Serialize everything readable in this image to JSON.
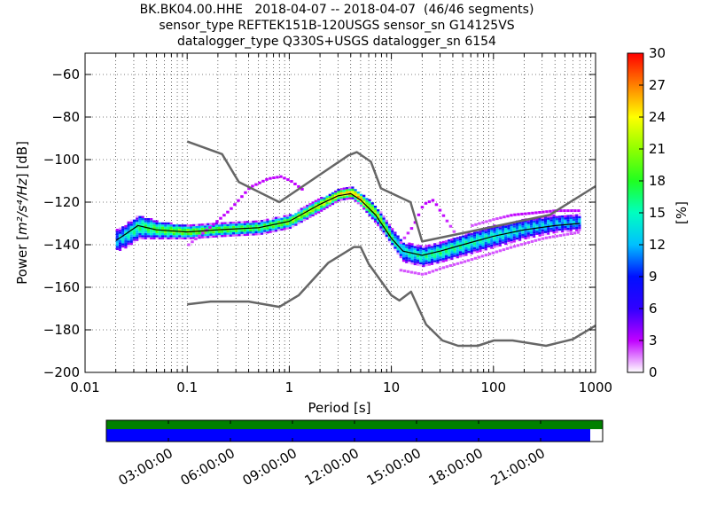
{
  "title": {
    "line1": "BK.BK04.00.HHE   2018-04-07 -- 2018-04-07  (46/46 segments)",
    "line2": "sensor_type REFTEK151B-120USGS sensor_sn G14125VS",
    "line3": "datalogger_type Q330S+USGS datalogger_sn 6154"
  },
  "chart_data": [
    {
      "type": "heatmap",
      "xlabel": "Period [s]",
      "ylabel_prefix": "Power [",
      "ylabel_units": "m²/s⁴/Hz",
      "ylabel_suffix": "] [dB]",
      "xscale": "log",
      "xlim": [
        0.01,
        1000
      ],
      "ylim": [
        -200,
        -50
      ],
      "xticks": [
        0.01,
        0.1,
        1,
        10,
        100,
        1000
      ],
      "xtick_labels": [
        "0.01",
        "0.1",
        "1",
        "10",
        "100",
        "1000"
      ],
      "yticks": [
        -200,
        -180,
        -160,
        -140,
        -120,
        -100,
        -80,
        -60
      ],
      "grid": true,
      "colorbar": {
        "label": "[%]",
        "range": [
          0,
          30
        ],
        "ticks": [
          0,
          3,
          6,
          9,
          12,
          15,
          18,
          21,
          24,
          27,
          30
        ],
        "colormap": "pqlx"
      },
      "noise_model_high": {
        "color": "#666666",
        "period": [
          0.1,
          0.22,
          0.32,
          0.8,
          3.8,
          4.6,
          6.3,
          7.9,
          15.4,
          20,
          354.8,
          1000
        ],
        "power": [
          -91.5,
          -97.4,
          -110.5,
          -120.0,
          -98.0,
          -96.5,
          -101.0,
          -113.5,
          -120.0,
          -138.5,
          -126.0,
          -112.5
        ]
      },
      "noise_model_low": {
        "color": "#666666",
        "period": [
          0.1,
          0.17,
          0.4,
          0.8,
          1.24,
          2.4,
          4.3,
          5.0,
          6.0,
          10.0,
          12.0,
          15.6,
          21.9,
          31.6,
          45,
          70,
          101,
          154,
          328,
          600,
          1000
        ],
        "power": [
          -168.0,
          -166.7,
          -166.7,
          -169.2,
          -163.7,
          -148.6,
          -141.1,
          -141.1,
          -149.0,
          -163.8,
          -166.2,
          -162.1,
          -177.5,
          -185.0,
          -187.5,
          -187.5,
          -185.0,
          -185.0,
          -187.5,
          -184.4,
          -178.0
        ]
      },
      "median_curve": {
        "color": "#000000",
        "period": [
          0.02,
          0.025,
          0.033,
          0.05,
          0.1,
          0.2,
          0.5,
          1,
          2,
          3,
          4,
          5,
          7,
          10,
          13,
          20,
          30,
          50,
          100,
          200,
          400,
          700
        ],
        "power": [
          -138,
          -135,
          -131,
          -133,
          -134,
          -133,
          -132,
          -129,
          -121,
          -117,
          -116,
          -119,
          -126,
          -137,
          -143,
          -145,
          -143,
          -140,
          -136,
          -133,
          -131,
          -130
        ]
      },
      "distribution": {
        "period": [
          0.02,
          0.025,
          0.033,
          0.05,
          0.1,
          0.2,
          0.5,
          1,
          2,
          3,
          4,
          5,
          7,
          10,
          13,
          20,
          30,
          50,
          100,
          200,
          400,
          700
        ],
        "p_low": [
          -143,
          -141,
          -137,
          -137,
          -137,
          -136,
          -135,
          -132,
          -124,
          -119,
          -118,
          -122,
          -130,
          -141,
          -148,
          -150,
          -148,
          -145,
          -141,
          -137,
          -134,
          -133
        ],
        "p_high": [
          -133,
          -130,
          -126,
          -129,
          -131,
          -130,
          -129,
          -126,
          -118,
          -114,
          -113,
          -116,
          -122,
          -133,
          -139,
          -141,
          -139,
          -135,
          -131,
          -128,
          -126,
          -126
        ],
        "peak_percent": [
          12,
          14,
          16,
          18,
          20,
          19,
          18,
          20,
          22,
          24,
          26,
          24,
          20,
          16,
          14,
          15,
          16,
          15,
          14,
          13,
          12,
          12
        ]
      },
      "low_probability_outliers": [
        {
          "period": [
            0.1,
            0.17,
            0.25,
            0.4,
            0.6,
            0.8,
            1.0,
            1.3
          ],
          "power": [
            -140,
            -131,
            -124,
            -113,
            -109,
            -108,
            -110,
            -114
          ],
          "percent": [
            2,
            3,
            3,
            3,
            3,
            3,
            3,
            3
          ]
        },
        {
          "period": [
            12,
            16,
            20,
            25,
            30,
            40
          ],
          "power": [
            -139,
            -131,
            -121,
            -119,
            -125,
            -134
          ],
          "percent": [
            2,
            3,
            3,
            3,
            3,
            2
          ]
        },
        {
          "period": [
            12,
            20,
            30,
            50,
            80,
            150,
            300,
            700
          ],
          "power": [
            -152,
            -154,
            -151,
            -148,
            -145,
            -141,
            -137,
            -134
          ],
          "percent": [
            2,
            2,
            2,
            2,
            2,
            2,
            2,
            2
          ]
        },
        {
          "period": [
            60,
            100,
            150,
            250,
            400,
            700
          ],
          "power": [
            -131,
            -128,
            -126,
            -125,
            -124,
            -124
          ],
          "percent": [
            2,
            2,
            3,
            3,
            3,
            3
          ]
        }
      ]
    },
    {
      "type": "bar",
      "description_role": "data-availability timeline",
      "time_ticks": [
        "03:00:00",
        "06:00:00",
        "09:00:00",
        "12:00:00",
        "15:00:00",
        "18:00:00",
        "21:00:00"
      ],
      "tick_hours": [
        3,
        6,
        9,
        12,
        15,
        18,
        21
      ],
      "range_hours": [
        0,
        24
      ],
      "bars": [
        {
          "color": "#008000",
          "start_hour": 0,
          "end_hour": 24
        },
        {
          "color": "#0000ff",
          "start_hour": 0,
          "end_hour": 23.4
        }
      ]
    }
  ]
}
